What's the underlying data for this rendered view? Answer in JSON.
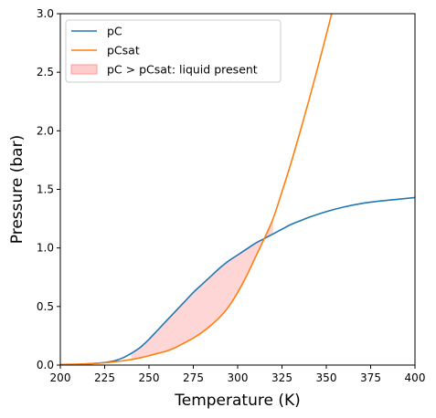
{
  "chart_data": {
    "type": "line",
    "title": "",
    "xlabel": "Temperature (K)",
    "ylabel": "Pressure (bar)",
    "xlim": [
      200,
      400
    ],
    "ylim": [
      0,
      3.0
    ],
    "xticks": [
      200,
      225,
      250,
      275,
      300,
      325,
      350,
      375,
      400
    ],
    "xtick_labels": [
      "200",
      "225",
      "250",
      "275",
      "300",
      "325",
      "350",
      "375",
      "400"
    ],
    "yticks": [
      0,
      0.5,
      1.0,
      1.5,
      2.0,
      2.5,
      3.0
    ],
    "ytick_labels": [
      "0.0",
      "0.5",
      "1.0",
      "1.5",
      "2.0",
      "2.5",
      "3.0"
    ],
    "grid": false,
    "legend_position": "top-left",
    "series": [
      {
        "name": "pC",
        "color": "#1f77b4",
        "x": [
          200,
          210,
          220,
          225,
          230,
          235,
          240,
          245,
          250,
          255,
          260,
          265,
          270,
          275,
          280,
          285,
          290,
          295,
          300,
          305,
          310,
          315,
          320,
          325,
          330,
          335,
          340,
          350,
          360,
          370,
          380,
          390,
          400
        ],
        "y": [
          0.0,
          0.005,
          0.015,
          0.022,
          0.035,
          0.06,
          0.1,
          0.15,
          0.22,
          0.3,
          0.38,
          0.46,
          0.54,
          0.62,
          0.69,
          0.76,
          0.83,
          0.89,
          0.94,
          0.99,
          1.04,
          1.08,
          1.12,
          1.16,
          1.2,
          1.23,
          1.26,
          1.31,
          1.35,
          1.38,
          1.4,
          1.415,
          1.43
        ]
      },
      {
        "name": "pCsat",
        "color": "#ff7f0e",
        "x": [
          200,
          210,
          220,
          225,
          230,
          235,
          240,
          245,
          250,
          255,
          260,
          265,
          270,
          275,
          280,
          285,
          290,
          295,
          300,
          305,
          310,
          315,
          320,
          325,
          330,
          335,
          340,
          345,
          350,
          355,
          358
        ],
        "y": [
          0.005,
          0.008,
          0.015,
          0.02,
          0.027,
          0.036,
          0.047,
          0.062,
          0.08,
          0.1,
          0.12,
          0.15,
          0.19,
          0.23,
          0.28,
          0.34,
          0.41,
          0.5,
          0.62,
          0.76,
          0.92,
          1.08,
          1.25,
          1.48,
          1.72,
          1.98,
          2.25,
          2.53,
          2.82,
          3.12,
          3.3
        ]
      }
    ],
    "fill_between": {
      "name": "pC > pCsat: liquid present",
      "color": "#ffcccc",
      "edge_color": "#ff9999",
      "x_range": [
        240,
        320
      ]
    }
  }
}
